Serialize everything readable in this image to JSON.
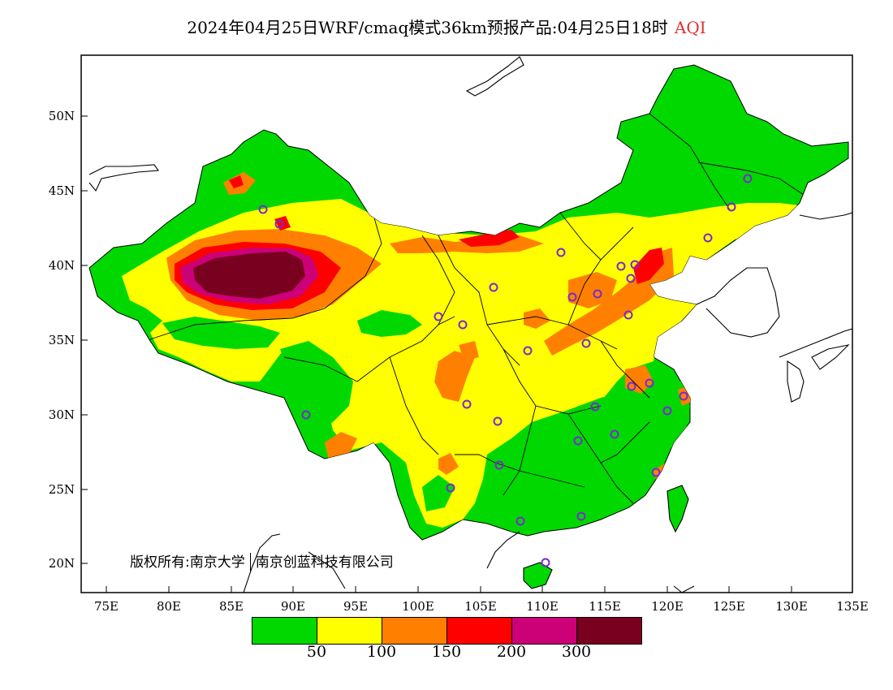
{
  "title": {
    "text": "2024年04月25日WRF/cmaq模式36km预报产品:04月25日18时",
    "variable": "AQI",
    "variable_color": "#e03030"
  },
  "map": {
    "frame_color": "#000000",
    "lat_labels": [
      "50N",
      "45N",
      "40N",
      "35N",
      "30N",
      "25N",
      "20N"
    ],
    "lon_labels": [
      "75E",
      "80E",
      "85E",
      "90E",
      "95E",
      "100E",
      "105E",
      "110E",
      "115E",
      "120E",
      "125E",
      "130E",
      "135E"
    ],
    "copyright": {
      "part1": "版权所有:南京大学",
      "part2": "南京创蓝科技有限公司"
    }
  },
  "legend": {
    "colors": [
      "#00d800",
      "#ffff00",
      "#ff8000",
      "#ff0000",
      "#cc0077",
      "#7a0020"
    ],
    "levels": [
      "50",
      "100",
      "150",
      "200",
      "300"
    ]
  }
}
